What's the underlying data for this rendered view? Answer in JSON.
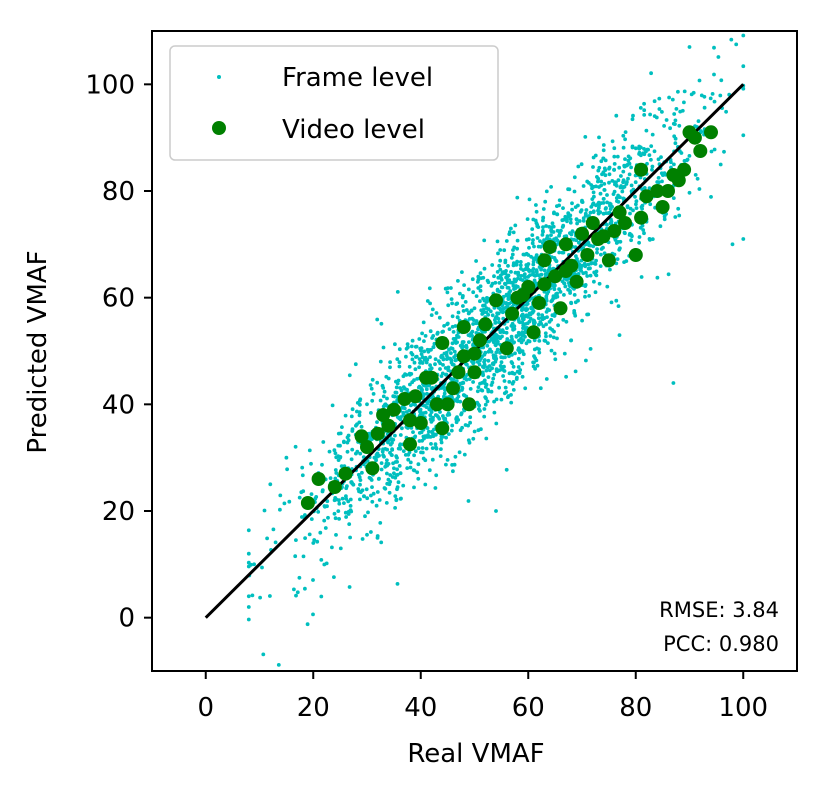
{
  "chart_data": {
    "type": "scatter",
    "xlabel": "Real VMAF",
    "ylabel": "Predicted VMAF",
    "xlim": [
      -10,
      110
    ],
    "ylim": [
      -10,
      110
    ],
    "xticks": [
      0,
      20,
      40,
      60,
      80,
      100
    ],
    "yticks": [
      0,
      20,
      40,
      60,
      80,
      100
    ],
    "legend_position": "top-left",
    "identity_line": {
      "x": [
        0,
        100
      ],
      "y": [
        0,
        100
      ],
      "color": "#000000"
    },
    "series": [
      {
        "name": "Frame level",
        "marker": "small-dot",
        "color": "#00bfbf",
        "approximate_count": 2500,
        "x_range": [
          8,
          100
        ],
        "noise_sd": 7,
        "sample_points": [
          [
            9,
            10
          ],
          [
            12,
            25
          ],
          [
            15,
            30
          ],
          [
            20,
            14
          ],
          [
            25,
            30
          ],
          [
            30,
            40
          ],
          [
            35,
            28
          ],
          [
            40,
            48
          ],
          [
            45,
            38
          ],
          [
            50,
            58
          ],
          [
            55,
            47
          ],
          [
            60,
            68
          ],
          [
            65,
            57
          ],
          [
            70,
            78
          ],
          [
            75,
            66
          ],
          [
            80,
            88
          ],
          [
            85,
            76
          ],
          [
            90,
            107
          ],
          [
            87,
            44
          ],
          [
            98,
            70
          ],
          [
            100,
            71
          ],
          [
            54,
            20
          ]
        ]
      },
      {
        "name": "Video level",
        "marker": "circle",
        "color": "#008000",
        "points": [
          [
            19,
            21.5
          ],
          [
            21,
            26
          ],
          [
            24,
            24.5
          ],
          [
            26,
            27
          ],
          [
            29,
            34
          ],
          [
            30,
            32
          ],
          [
            31,
            28
          ],
          [
            32,
            34.5
          ],
          [
            33,
            38
          ],
          [
            34,
            36
          ],
          [
            35,
            39
          ],
          [
            37,
            41
          ],
          [
            38,
            37
          ],
          [
            38,
            32.5
          ],
          [
            39,
            41.5
          ],
          [
            40,
            36.5
          ],
          [
            41,
            45
          ],
          [
            42,
            45
          ],
          [
            43,
            40
          ],
          [
            44,
            35.5
          ],
          [
            44,
            51.5
          ],
          [
            45,
            40
          ],
          [
            46,
            43
          ],
          [
            47,
            46
          ],
          [
            48,
            49
          ],
          [
            48,
            54.5
          ],
          [
            49,
            40
          ],
          [
            50,
            46
          ],
          [
            50,
            49.5
          ],
          [
            51,
            52
          ],
          [
            52,
            55
          ],
          [
            54,
            59.5
          ],
          [
            56,
            50.5
          ],
          [
            57,
            57
          ],
          [
            58,
            60
          ],
          [
            59,
            60.5
          ],
          [
            60,
            62
          ],
          [
            61,
            53.5
          ],
          [
            62,
            59
          ],
          [
            63,
            62.5
          ],
          [
            63,
            67
          ],
          [
            64,
            69.5
          ],
          [
            65,
            64
          ],
          [
            66,
            58
          ],
          [
            67,
            70
          ],
          [
            67,
            65
          ],
          [
            68,
            66
          ],
          [
            69,
            63
          ],
          [
            70,
            72
          ],
          [
            71,
            68
          ],
          [
            72,
            74
          ],
          [
            73,
            71
          ],
          [
            74,
            71.5
          ],
          [
            75,
            67
          ],
          [
            76,
            72.5
          ],
          [
            77,
            76
          ],
          [
            78,
            74
          ],
          [
            80,
            68
          ],
          [
            81,
            75
          ],
          [
            81,
            84
          ],
          [
            82,
            79
          ],
          [
            84,
            80
          ],
          [
            85,
            77
          ],
          [
            86,
            80
          ],
          [
            87,
            83
          ],
          [
            88,
            82
          ],
          [
            89,
            84
          ],
          [
            90,
            91
          ],
          [
            91,
            90
          ],
          [
            92,
            87.5
          ],
          [
            94,
            91
          ]
        ]
      }
    ],
    "annotations": [
      "RMSE: 3.84",
      "PCC: 0.980"
    ]
  }
}
